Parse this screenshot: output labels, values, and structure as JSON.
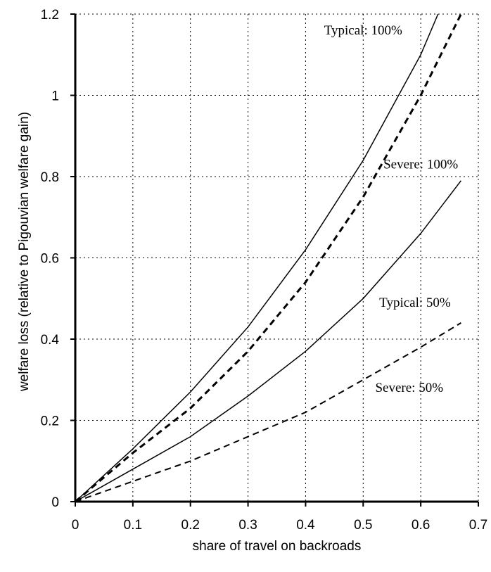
{
  "chart_data": {
    "type": "line",
    "xlabel": "share of travel on backroads",
    "ylabel": "welfare loss (relative to Pigouvian welfare gain)",
    "xlim": [
      0,
      0.7
    ],
    "ylim": [
      0,
      1.2
    ],
    "xticks": [
      "0",
      "0.1",
      "0.2",
      "0.3",
      "0.4",
      "0.5",
      "0.6",
      "0.7"
    ],
    "yticks": [
      "0",
      "0.2",
      "0.4",
      "0.6",
      "0.8",
      "1",
      "1.2"
    ],
    "grid": true,
    "series": [
      {
        "name": "Typical: 100%",
        "style": "solid",
        "x": [
          0,
          0.1,
          0.2,
          0.3,
          0.4,
          0.5,
          0.6,
          0.63
        ],
        "y": [
          0,
          0.13,
          0.27,
          0.43,
          0.62,
          0.84,
          1.1,
          1.2
        ]
      },
      {
        "name": "Severe: 100%",
        "style": "dashed-bold",
        "x": [
          0,
          0.1,
          0.2,
          0.3,
          0.4,
          0.5,
          0.6,
          0.67
        ],
        "y": [
          0,
          0.12,
          0.23,
          0.37,
          0.54,
          0.75,
          1.0,
          1.2
        ]
      },
      {
        "name": "Typical: 50%",
        "style": "solid",
        "x": [
          0,
          0.1,
          0.2,
          0.3,
          0.4,
          0.5,
          0.6,
          0.67
        ],
        "y": [
          0,
          0.08,
          0.16,
          0.26,
          0.37,
          0.5,
          0.66,
          0.79
        ]
      },
      {
        "name": "Severe: 50%",
        "style": "dashed",
        "x": [
          0,
          0.1,
          0.2,
          0.3,
          0.4,
          0.5,
          0.6,
          0.67
        ],
        "y": [
          0,
          0.05,
          0.1,
          0.16,
          0.22,
          0.3,
          0.38,
          0.44
        ]
      }
    ],
    "annotations": [
      {
        "text": "Typical: 100%",
        "x": 0.5,
        "y": 1.15
      },
      {
        "text": "Severe: 100%",
        "x": 0.6,
        "y": 0.82
      },
      {
        "text": "Typical: 50%",
        "x": 0.59,
        "y": 0.48
      },
      {
        "text": "Severe: 50%",
        "x": 0.58,
        "y": 0.27
      }
    ]
  }
}
